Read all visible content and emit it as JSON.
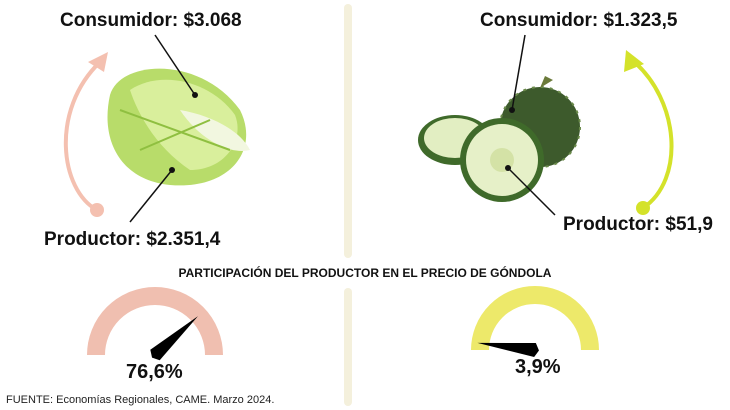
{
  "left": {
    "consumer_label": "Consumidor: $3.068",
    "producer_label": "Productor: $2.351,4",
    "share_label": "76,6%",
    "share_value": 76.6,
    "color": "#f0bfb0",
    "arrow_color": "#f4c0b0"
  },
  "right": {
    "consumer_label": "Consumidor: $1.323,5",
    "producer_label": "Productor: $51,9",
    "share_label": "3,9%",
    "share_value": 3.9,
    "color": "#ede96a",
    "arrow_color": "#d4e22a"
  },
  "title": "PARTICIPACIÓN DEL PRODUCTOR EN EL PRECIO DE GÓNDOLA",
  "source": "FUENTE: Economías Regionales, CAME. Marzo 2024.",
  "divider_color": "#f4f0dc"
}
